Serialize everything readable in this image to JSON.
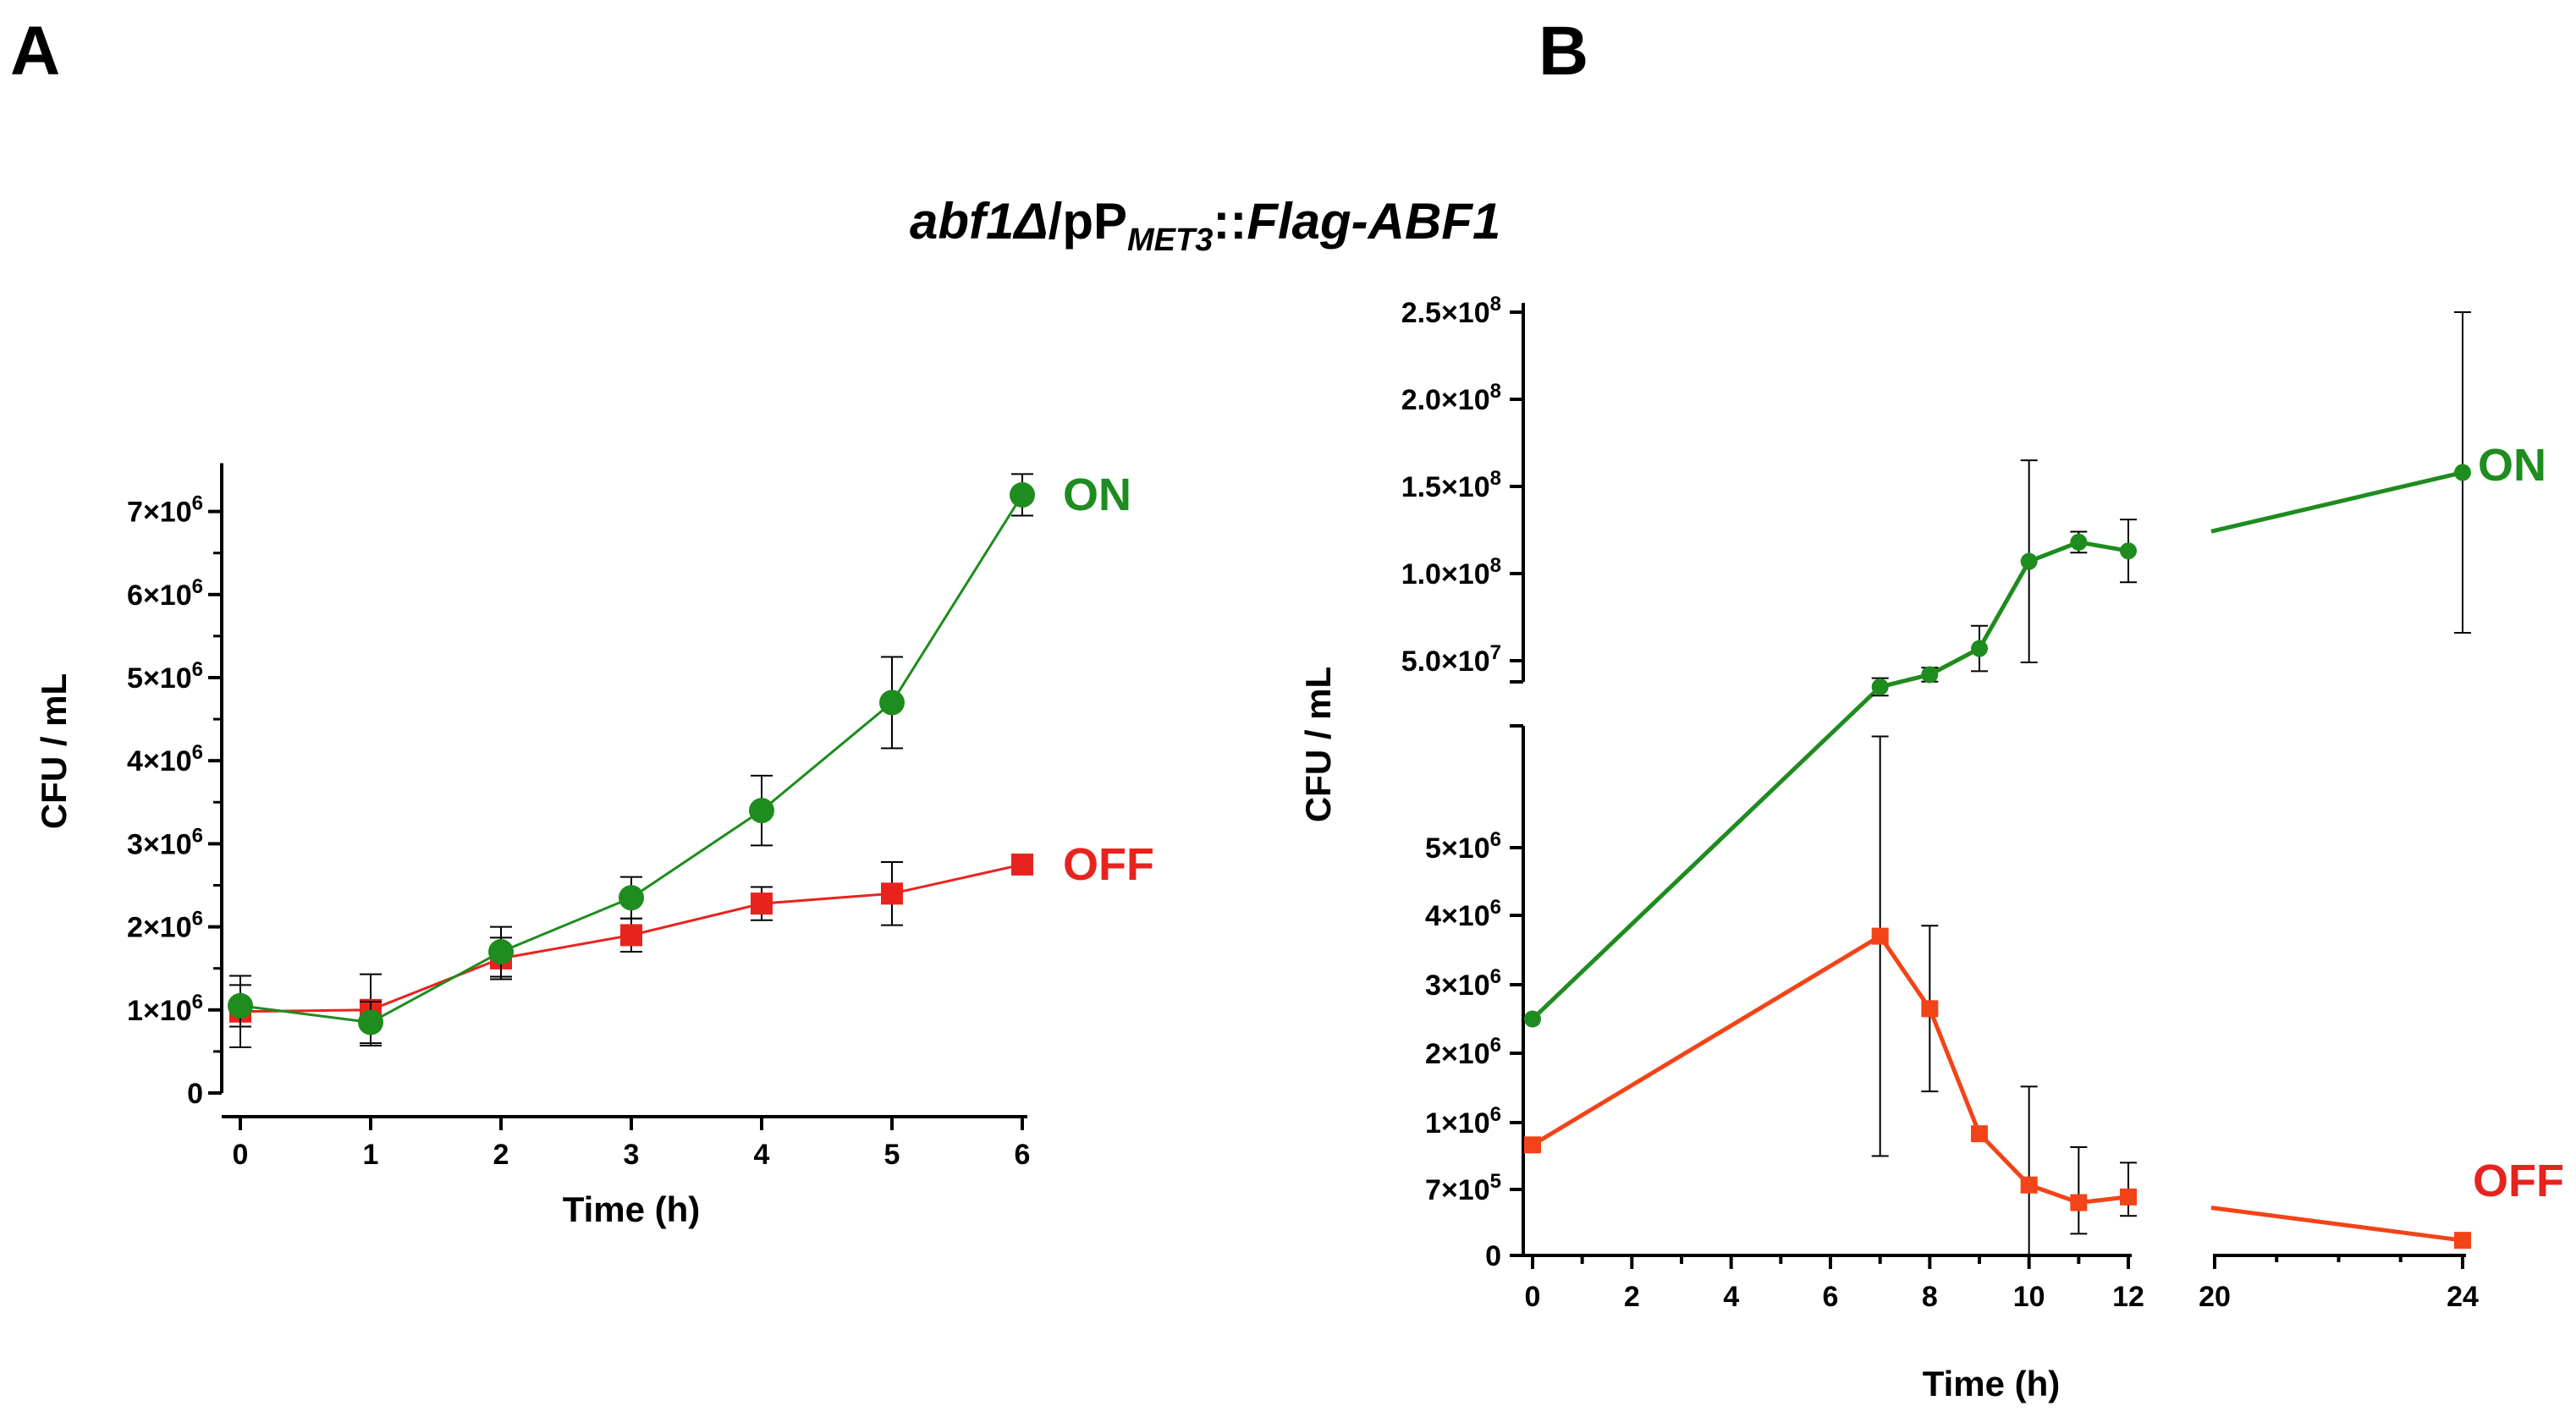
{
  "panels": {
    "a": "A",
    "b": "B"
  },
  "title": {
    "gene_italic": "abf1Δ",
    "sep": "/pP",
    "sub": "MET3",
    "mid": "::",
    "construct_italic": "Flag-ABF1"
  },
  "colors": {
    "on": "#1e8c1e",
    "off": "#e8231e",
    "off_b": "#f24418"
  },
  "chart_data": [
    {
      "id": "A",
      "type": "line",
      "xlabel": "Time (h)",
      "ylabel": "CFU / mL",
      "xlim": [
        0,
        6
      ],
      "ylim": [
        0,
        7500000
      ],
      "x_ticks": [
        "0",
        "1",
        "2",
        "3",
        "4",
        "5",
        "6"
      ],
      "y_ticks": [
        {
          "value": 0,
          "base": "0",
          "exp": ""
        },
        {
          "value": 1000000,
          "base": "1×10",
          "exp": "6"
        },
        {
          "value": 2000000,
          "base": "2×10",
          "exp": "6"
        },
        {
          "value": 3000000,
          "base": "3×10",
          "exp": "6"
        },
        {
          "value": 4000000,
          "base": "4×10",
          "exp": "6"
        },
        {
          "value": 5000000,
          "base": "5×10",
          "exp": "6"
        },
        {
          "value": 6000000,
          "base": "6×10",
          "exp": "6"
        },
        {
          "value": 7000000,
          "base": "7×10",
          "exp": "6"
        }
      ],
      "series": [
        {
          "name": "ON",
          "marker": "circle",
          "x": [
            0,
            1,
            2,
            3,
            4,
            5,
            6
          ],
          "values": [
            1050000,
            850000,
            1700000,
            2350000,
            3400000,
            4700000,
            7200000
          ],
          "errors": [
            250000,
            250000,
            300000,
            250000,
            420000,
            550000,
            250000
          ]
        },
        {
          "name": "OFF",
          "marker": "square",
          "x": [
            0,
            1,
            2,
            3,
            4,
            5,
            6
          ],
          "values": [
            980000,
            1000000,
            1620000,
            1900000,
            2280000,
            2400000,
            2750000
          ],
          "errors": [
            430000,
            430000,
            250000,
            200000,
            200000,
            380000,
            0
          ]
        }
      ]
    },
    {
      "id": "B",
      "type": "line",
      "xlabel": "Time (h)",
      "ylabel": "CFU / mL",
      "x_ticks": [
        "0",
        "2",
        "4",
        "6",
        "8",
        "10",
        "12",
        "20",
        "24"
      ],
      "x_segments": [
        [
          0,
          12
        ],
        [
          20,
          24
        ]
      ],
      "y_lower_ticks": [
        {
          "base": "0",
          "exp": ""
        },
        {
          "base": "7×10",
          "exp": "5"
        },
        {
          "base": "1×10",
          "exp": "6"
        },
        {
          "base": "2×10",
          "exp": "6"
        },
        {
          "base": "3×10",
          "exp": "6"
        },
        {
          "base": "4×10",
          "exp": "6"
        },
        {
          "base": "5×10",
          "exp": "6"
        }
      ],
      "y_upper_ticks": [
        {
          "value": 50000000,
          "base": "5.0×10",
          "exp": "7"
        },
        {
          "value": 100000000,
          "base": "1.0×10",
          "exp": "8"
        },
        {
          "value": 150000000,
          "base": "1.5×10",
          "exp": "8"
        },
        {
          "value": 200000000,
          "base": "2.0×10",
          "exp": "8"
        },
        {
          "value": 250000000,
          "base": "2.5×10",
          "exp": "8"
        }
      ],
      "series": [
        {
          "name": "ON",
          "marker": "circle",
          "x": [
            0,
            7,
            8,
            9,
            10,
            11,
            12,
            24
          ],
          "values": [
            2500000,
            35000000,
            42000000,
            57000000,
            107000000,
            118000000,
            113000000,
            158000000
          ],
          "errors": [
            0,
            5000000,
            4000000,
            13000000,
            58000000,
            6000000,
            18000000,
            92000000
          ]
        },
        {
          "name": "OFF",
          "marker": "square",
          "x": [
            0,
            7,
            8,
            9,
            10,
            11,
            12,
            24
          ],
          "values": [
            900000,
            3700000,
            2650000,
            950000,
            720000,
            560000,
            620000,
            160000
          ],
          "errors": [
            0,
            2850000,
            1200000,
            0,
            800000,
            330000,
            200000,
            60000
          ]
        }
      ]
    }
  ]
}
